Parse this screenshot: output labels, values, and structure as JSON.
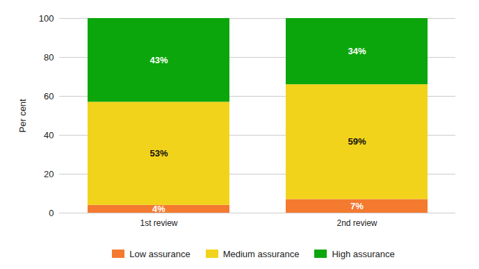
{
  "chart_data": {
    "type": "bar",
    "stacked": true,
    "categories": [
      "1st review",
      "2nd review"
    ],
    "series": [
      {
        "name": "Low assurance",
        "color": "#f47a30",
        "values": [
          4,
          7
        ],
        "value_labels": [
          "4%",
          "7%"
        ]
      },
      {
        "name": "Medium assurance",
        "color": "#f2d31b",
        "values": [
          53,
          59
        ],
        "value_labels": [
          "53%",
          "59%"
        ]
      },
      {
        "name": "High assurance",
        "color": "#0ba60b",
        "values": [
          43,
          34
        ],
        "value_labels": [
          "43%",
          "34%"
        ]
      }
    ],
    "y_label": "Per cent",
    "ylim": [
      0,
      100
    ],
    "yticks": [
      0,
      20,
      40,
      60,
      80,
      100
    ],
    "grid": true,
    "data_labels": true,
    "legend": "bottom"
  }
}
